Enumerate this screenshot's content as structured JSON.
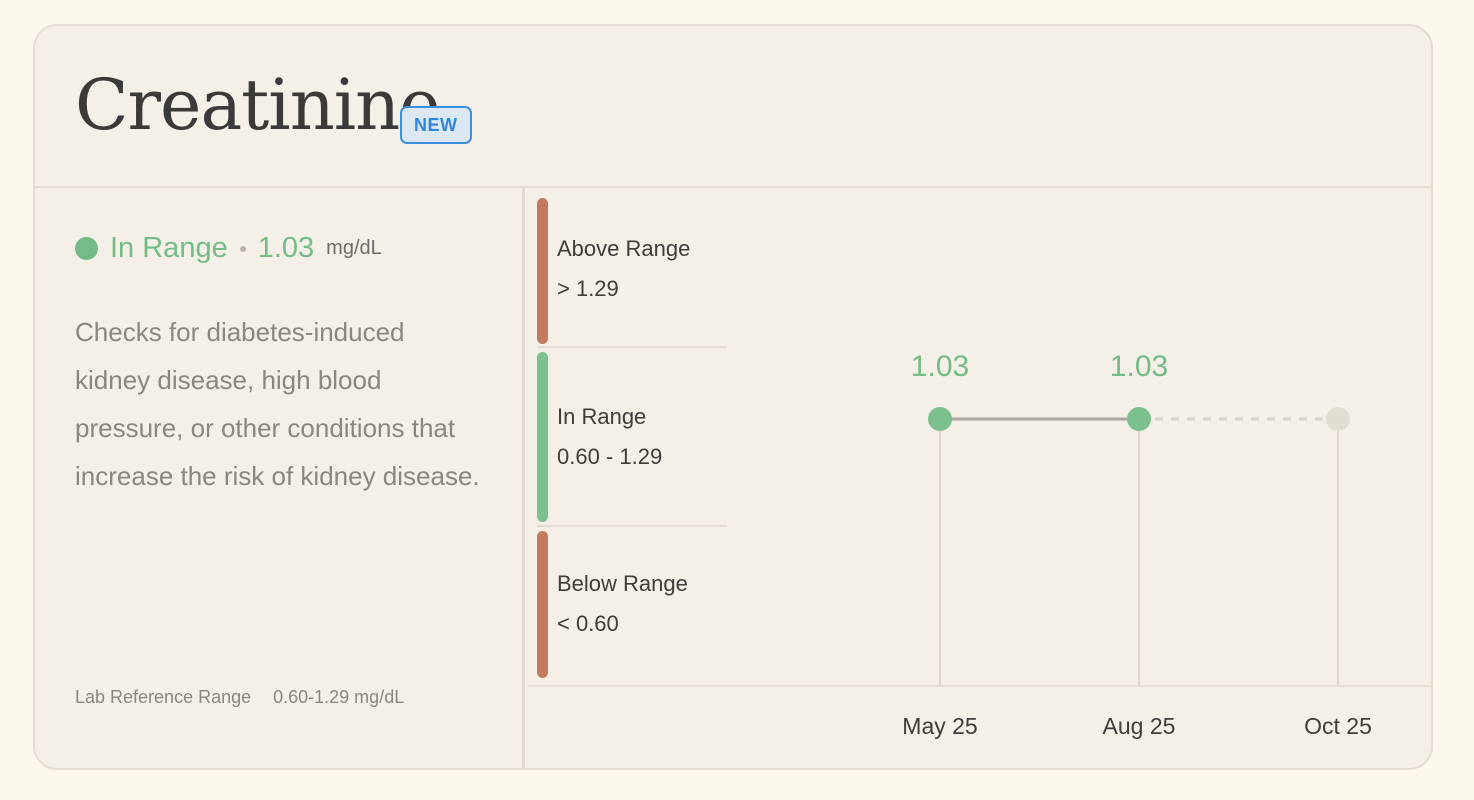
{
  "card": {
    "title": "Creatinine",
    "badge": "NEW"
  },
  "status": {
    "label": "In Range",
    "value": "1.03",
    "unit": "mg/dL",
    "color": "#73bc88"
  },
  "description": "Checks for diabetes-induced kidney disease, high blood pressure, or other conditions that increase the risk of kidney disease.",
  "reference": {
    "label": "Lab Reference Range",
    "value": "0.60-1.29 mg/dL"
  },
  "ranges": [
    {
      "label": "Above Range",
      "value": "> 1.29",
      "color": "#c47a5c"
    },
    {
      "label": "In Range",
      "value": "0.60 - 1.29",
      "color": "#7cc08d"
    },
    {
      "label": "Below Range",
      "value": "< 0.60",
      "color": "#c47a5c"
    }
  ],
  "chart_data": {
    "type": "line",
    "x": [
      "May 25",
      "Aug 25",
      "Oct 25"
    ],
    "values": [
      1.03,
      1.03,
      null
    ],
    "data_labels": [
      "1.03",
      "1.03",
      ""
    ],
    "upcoming_point": "Oct 25",
    "colors": {
      "measured": "#7cc08d",
      "upcoming": "#e2ddd3",
      "line": "#a9a7a3"
    }
  }
}
